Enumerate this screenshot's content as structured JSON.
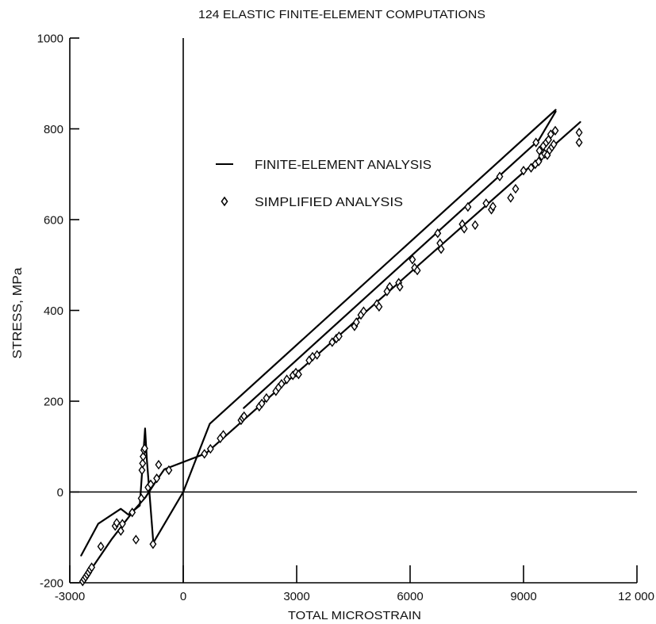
{
  "chart_data": {
    "type": "line",
    "title": "124 ELASTIC FINITE-ELEMENT COMPUTATIONS",
    "xlabel": "TOTAL MICROSTRAIN",
    "ylabel": "STRESS, MPa",
    "xlim": [
      -3000,
      12000
    ],
    "ylim": [
      -200,
      1000
    ],
    "x_ticks": [
      -3000,
      0,
      3000,
      6000,
      9000,
      12000
    ],
    "x_tick_labels": [
      "-3000",
      "0",
      "3000",
      "6000",
      "9000",
      "12 000"
    ],
    "y_ticks": [
      -200,
      0,
      200,
      400,
      600,
      800,
      1000
    ],
    "y_tick_labels": [
      "-200",
      "0",
      "200",
      "400",
      "600",
      "800",
      "1000"
    ],
    "grid": false,
    "zero_lines": {
      "x": 0,
      "y": 0
    },
    "legend": {
      "position": "upper-left"
    },
    "series": [
      {
        "name": "FINITE-ELEMENT ANALYSIS",
        "type": "line",
        "color": "#000000",
        "curves": [
          [
            [
              -2700,
              -140
            ],
            [
              -2250,
              -70
            ],
            [
              -1650,
              -37
            ],
            [
              -1450,
              -50
            ],
            [
              -1150,
              -30
            ],
            [
              -1010,
              140
            ],
            [
              -960,
              70
            ],
            [
              -790,
              -112
            ],
            [
              0,
              0
            ],
            [
              700,
              150
            ],
            [
              9850,
              842
            ]
          ],
          [
            [
              1600,
              185
            ],
            [
              9400,
              775
            ],
            [
              9850,
              838
            ]
          ],
          [
            [
              -2680,
              -200
            ],
            [
              -2450,
              -172
            ],
            [
              -1900,
              -105
            ],
            [
              -1300,
              -40
            ],
            [
              -1000,
              -12
            ],
            [
              -750,
              20
            ],
            [
              -500,
              50
            ],
            [
              600,
              85
            ],
            [
              10500,
              815
            ]
          ]
        ]
      },
      {
        "name": "SIMPLIFIED ANALYSIS",
        "type": "scatter",
        "marker": "diamond",
        "color": "#000000",
        "points": [
          [
            -2660,
            -197
          ],
          [
            -2620,
            -192
          ],
          [
            -2580,
            -187
          ],
          [
            -2540,
            -182
          ],
          [
            -2500,
            -177
          ],
          [
            -2460,
            -171
          ],
          [
            -2420,
            -166
          ],
          [
            -2180,
            -120
          ],
          [
            -1800,
            -75
          ],
          [
            -1760,
            -68
          ],
          [
            -1650,
            -86
          ],
          [
            -1610,
            -70
          ],
          [
            -1350,
            -45
          ],
          [
            -1250,
            -105
          ],
          [
            -1110,
            -14
          ],
          [
            -1090,
            48
          ],
          [
            -1075,
            63
          ],
          [
            -1060,
            78
          ],
          [
            -1040,
            92
          ],
          [
            -1020,
            96
          ],
          [
            -930,
            10
          ],
          [
            -860,
            17
          ],
          [
            -800,
            -115
          ],
          [
            -700,
            30
          ],
          [
            -650,
            60
          ],
          [
            -380,
            48
          ],
          [
            560,
            84
          ],
          [
            720,
            95
          ],
          [
            980,
            118
          ],
          [
            1060,
            126
          ],
          [
            1530,
            158
          ],
          [
            1570,
            163
          ],
          [
            1610,
            167
          ],
          [
            2010,
            188
          ],
          [
            2080,
            195
          ],
          [
            2200,
            207
          ],
          [
            2450,
            222
          ],
          [
            2520,
            230
          ],
          [
            2600,
            238
          ],
          [
            2740,
            248
          ],
          [
            2900,
            257
          ],
          [
            2980,
            263
          ],
          [
            3050,
            259
          ],
          [
            3330,
            290
          ],
          [
            3420,
            298
          ],
          [
            3540,
            302
          ],
          [
            3940,
            330
          ],
          [
            4050,
            338
          ],
          [
            4120,
            343
          ],
          [
            4530,
            365
          ],
          [
            4580,
            374
          ],
          [
            4700,
            390
          ],
          [
            4770,
            398
          ],
          [
            5120,
            414
          ],
          [
            5180,
            408
          ],
          [
            5390,
            442
          ],
          [
            5460,
            452
          ],
          [
            5700,
            461
          ],
          [
            5730,
            452
          ],
          [
            6060,
            512
          ],
          [
            6120,
            494
          ],
          [
            6190,
            488
          ],
          [
            6730,
            570
          ],
          [
            6790,
            548
          ],
          [
            6820,
            535
          ],
          [
            7380,
            590
          ],
          [
            7430,
            580
          ],
          [
            7530,
            628
          ],
          [
            7720,
            588
          ],
          [
            8010,
            636
          ],
          [
            8150,
            622
          ],
          [
            8190,
            629
          ],
          [
            8370,
            695
          ],
          [
            8660,
            648
          ],
          [
            8790,
            668
          ],
          [
            9000,
            708
          ],
          [
            9200,
            714
          ],
          [
            9310,
            722
          ],
          [
            9330,
            770
          ],
          [
            9400,
            728
          ],
          [
            9420,
            752
          ],
          [
            9480,
            740
          ],
          [
            9520,
            762
          ],
          [
            9560,
            745
          ],
          [
            9600,
            770
          ],
          [
            9630,
            742
          ],
          [
            9660,
            776
          ],
          [
            9690,
            753
          ],
          [
            9720,
            788
          ],
          [
            9750,
            760
          ],
          [
            9800,
            766
          ],
          [
            9840,
            796
          ],
          [
            10470,
            792
          ],
          [
            10470,
            770
          ]
        ]
      }
    ]
  }
}
